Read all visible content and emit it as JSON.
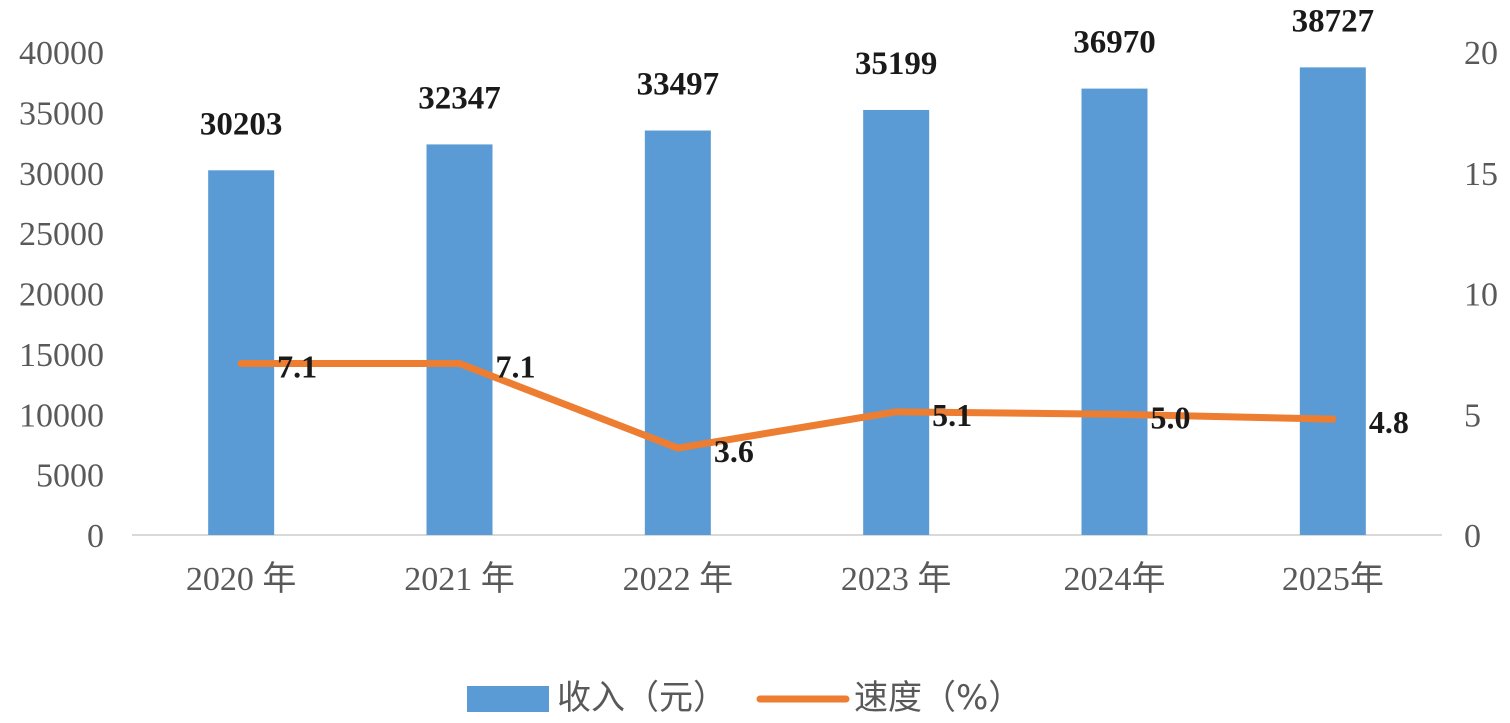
{
  "chart_data": {
    "type": "bar",
    "categories": [
      "2020 年",
      "2021 年",
      "2022 年",
      "2023 年",
      "2024年",
      "2025年"
    ],
    "series": [
      {
        "name": "收入（元）",
        "type": "bar",
        "axis": "left",
        "color": "#5b9bd5",
        "values": [
          30203,
          32347,
          33497,
          35199,
          36970,
          38727
        ],
        "labels": [
          "30203",
          "32347",
          "33497",
          "35199",
          "36970",
          "38727"
        ]
      },
      {
        "name": "速度（%）",
        "type": "line",
        "axis": "right",
        "color": "#ed7d31",
        "values": [
          7.1,
          7.1,
          3.6,
          5.1,
          5.0,
          4.8
        ],
        "labels": [
          "7.1",
          "7.1",
          "3.6",
          "5.1",
          "5.0",
          "4.8"
        ]
      }
    ],
    "ylim": [
      0,
      40000
    ],
    "yticks": [
      "0",
      "5000",
      "10000",
      "15000",
      "20000",
      "25000",
      "30000",
      "35000",
      "40000"
    ],
    "y2lim": [
      0,
      20
    ],
    "y2ticks": [
      "0",
      "5",
      "10",
      "15",
      "20"
    ],
    "legend": {
      "placement": "bottom",
      "bar_label": "收入（元）",
      "line_label": "速度（%）"
    },
    "grid": false,
    "title": "",
    "xlabel": "",
    "ylabel": ""
  }
}
